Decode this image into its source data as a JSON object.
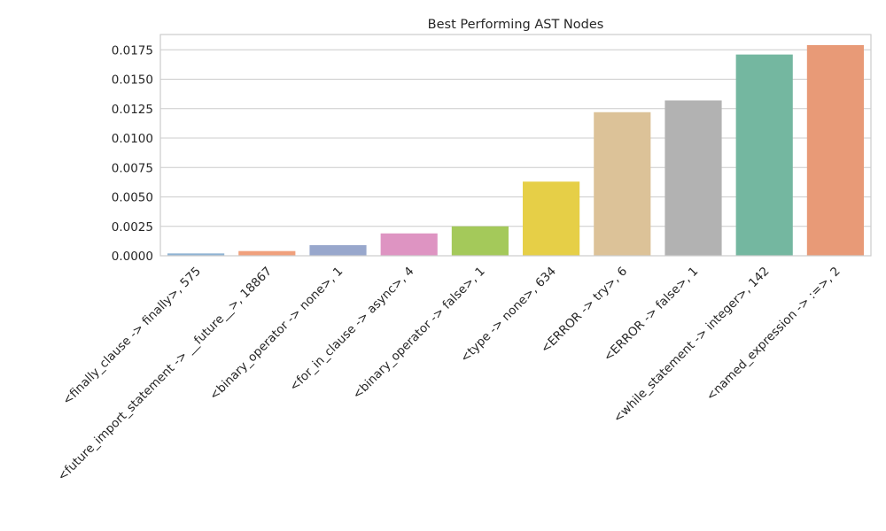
{
  "chart_data": {
    "type": "bar",
    "title": "Best Performing AST Nodes",
    "xlabel": "",
    "ylabel": "",
    "ylim": [
      0,
      0.0188
    ],
    "yticks": [
      0.0,
      0.0025,
      0.005,
      0.0075,
      0.01,
      0.0125,
      0.015,
      0.0175
    ],
    "ytick_labels": [
      "0.0000",
      "0.0025",
      "0.0050",
      "0.0075",
      "0.0100",
      "0.0125",
      "0.0150",
      "0.0175"
    ],
    "grid": "horizontal",
    "legend": "none",
    "categories": [
      "<finally_clause -> finally>, 575",
      "<future_import_statement -> __future__>, 18867",
      "<binary_operator -> none>, 1",
      "<for_in_clause -> async>, 4",
      "<binary_operator -> false>, 1",
      "<type -> none>, 634",
      "<ERROR -> try>, 6",
      "<ERROR -> false>, 1",
      "<while_statement -> integer>, 142",
      "<named_expression -> :=>, 2"
    ],
    "values": [
      0.0002,
      0.0004,
      0.0009,
      0.0019,
      0.0025,
      0.0063,
      0.0122,
      0.0132,
      0.0171,
      0.0179
    ],
    "colors": [
      "#8fb3d4",
      "#f0a07c",
      "#98a7cc",
      "#de94c2",
      "#a4c95a",
      "#e6cf47",
      "#dcc298",
      "#b2b2b2",
      "#74b7a0",
      "#e89a77"
    ]
  }
}
